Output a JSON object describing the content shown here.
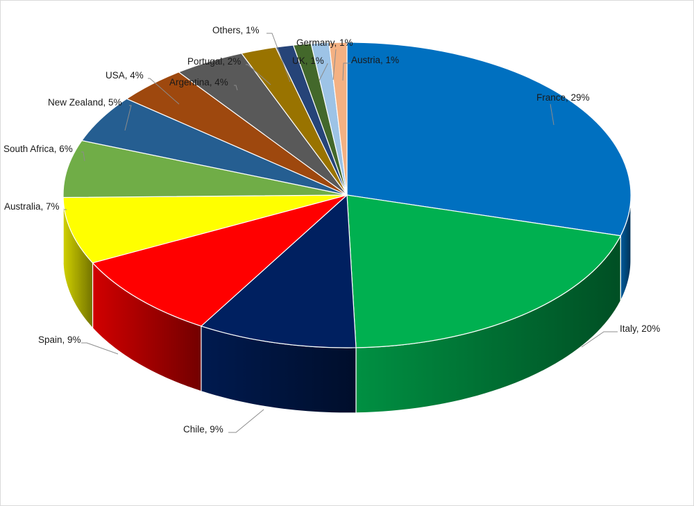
{
  "chart_data": {
    "type": "pie",
    "style": "3d-exploded-perspective",
    "title": "",
    "legend": "none",
    "slices": [
      {
        "name": "France",
        "value": 29,
        "label": "France, 29%",
        "color": "#0070C0"
      },
      {
        "name": "Italy",
        "value": 20,
        "label": "Italy, 20%",
        "color": "#00B050"
      },
      {
        "name": "Chile",
        "value": 9,
        "label": "Chile, 9%",
        "color": "#002060"
      },
      {
        "name": "Spain",
        "value": 9,
        "label": "Spain, 9%",
        "color": "#FF0000"
      },
      {
        "name": "Australia",
        "value": 7,
        "label": "Australia, 7%",
        "color": "#FFFF00"
      },
      {
        "name": "South Africa",
        "value": 6,
        "label": "South Africa, 6%",
        "color": "#70AD47"
      },
      {
        "name": "New Zealand",
        "value": 5,
        "label": "New Zealand, 5%",
        "color": "#255E91"
      },
      {
        "name": "USA",
        "value": 4,
        "label": "USA, 4%",
        "color": "#9E480E"
      },
      {
        "name": "Argentina",
        "value": 4,
        "label": "Argentina, 4%",
        "color": "#595959"
      },
      {
        "name": "Portugal",
        "value": 2,
        "label": "Portugal, 2%",
        "color": "#997300"
      },
      {
        "name": "Others",
        "value": 1,
        "label": "Others, 1%",
        "color": "#264478"
      },
      {
        "name": "UK",
        "value": 1,
        "label": "UK, 1%",
        "color": "#43682B"
      },
      {
        "name": "Germany",
        "value": 1,
        "label": "Germany, 1%",
        "color": "#9DC3E6"
      },
      {
        "name": "Austria",
        "value": 1,
        "label": "Austria, 1%",
        "color": "#F4B183"
      }
    ]
  }
}
